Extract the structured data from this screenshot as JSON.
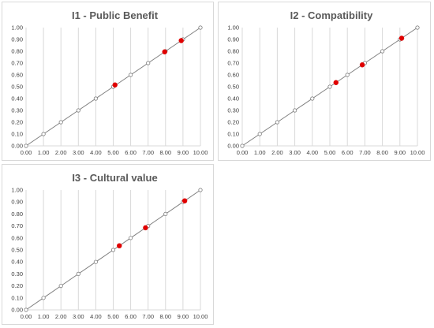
{
  "chart_data": [
    {
      "type": "scatter",
      "title": "I1 - Public Benefit",
      "xlim": [
        0,
        10
      ],
      "ylim": [
        0,
        1
      ],
      "x_ticks": [
        "0.00",
        "1.00",
        "2.00",
        "3.00",
        "4.00",
        "5.00",
        "6.00",
        "7.00",
        "8.00",
        "9.00",
        "10.00"
      ],
      "y_ticks": [
        "0.00",
        "0.10",
        "0.20",
        "0.30",
        "0.40",
        "0.50",
        "0.60",
        "0.70",
        "0.80",
        "0.90",
        "1.00"
      ],
      "grid": "vertical",
      "series": [
        {
          "role": "reference",
          "marker": "hollow-circle",
          "color": "#7f7f7f",
          "x": [
            0,
            1,
            2,
            3,
            4,
            5,
            6,
            7,
            8,
            9,
            10
          ],
          "y": [
            0,
            0.1,
            0.2,
            0.3,
            0.4,
            0.5,
            0.6,
            0.7,
            0.8,
            0.9,
            1.0
          ]
        },
        {
          "role": "highlight",
          "marker": "filled-circle",
          "color": "#e00000",
          "x": [
            5.1,
            7.95,
            8.9
          ],
          "y": [
            0.515,
            0.795,
            0.89
          ]
        }
      ]
    },
    {
      "type": "scatter",
      "title": "I2 - Compatibility",
      "xlim": [
        0,
        10
      ],
      "ylim": [
        0,
        1
      ],
      "x_ticks": [
        "0.00",
        "1.00",
        "2.00",
        "3.00",
        "4.00",
        "5.00",
        "6.00",
        "7.00",
        "8.00",
        "9.00",
        "10.00"
      ],
      "y_ticks": [
        "0.00",
        "0.10",
        "0.20",
        "0.30",
        "0.40",
        "0.50",
        "0.60",
        "0.70",
        "0.80",
        "0.90",
        "1.00"
      ],
      "grid": "vertical",
      "series": [
        {
          "role": "reference",
          "marker": "hollow-circle",
          "color": "#7f7f7f",
          "x": [
            0,
            1,
            2,
            3,
            4,
            5,
            6,
            7,
            8,
            9,
            10
          ],
          "y": [
            0,
            0.1,
            0.2,
            0.3,
            0.4,
            0.5,
            0.6,
            0.7,
            0.8,
            0.9,
            1.0
          ]
        },
        {
          "role": "highlight",
          "marker": "filled-circle",
          "color": "#e00000",
          "x": [
            5.35,
            6.85,
            9.1
          ],
          "y": [
            0.535,
            0.685,
            0.91
          ]
        }
      ]
    },
    {
      "type": "scatter",
      "title": "I3 - Cultural value",
      "xlim": [
        0,
        10
      ],
      "ylim": [
        0,
        1
      ],
      "x_ticks": [
        "0.00",
        "1.00",
        "2.00",
        "3.00",
        "4.00",
        "5.00",
        "6.00",
        "7.00",
        "8.00",
        "9.00",
        "10.00"
      ],
      "y_ticks": [
        "0.00",
        "0.10",
        "0.20",
        "0.30",
        "0.40",
        "0.50",
        "0.60",
        "0.70",
        "0.80",
        "0.90",
        "1.00"
      ],
      "grid": "vertical",
      "series": [
        {
          "role": "reference",
          "marker": "hollow-circle",
          "color": "#7f7f7f",
          "x": [
            0,
            1,
            2,
            3,
            4,
            5,
            6,
            7,
            8,
            9,
            10
          ],
          "y": [
            0,
            0.1,
            0.2,
            0.3,
            0.4,
            0.5,
            0.6,
            0.7,
            0.8,
            0.9,
            1.0
          ]
        },
        {
          "role": "highlight",
          "marker": "filled-circle",
          "color": "#e00000",
          "x": [
            5.35,
            6.85,
            9.1
          ],
          "y": [
            0.535,
            0.685,
            0.91
          ]
        }
      ]
    }
  ],
  "colors": {
    "gridline": "#d9d9d9",
    "reference_line": "#7f7f7f",
    "highlight": "#e00000",
    "title": "#595959",
    "tick_text": "#404040"
  }
}
